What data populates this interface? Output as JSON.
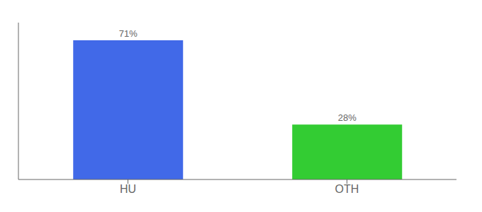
{
  "chart_data": {
    "type": "bar",
    "categories": [
      "HU",
      "OTH"
    ],
    "values": [
      71,
      28
    ],
    "value_labels": [
      "71%",
      "28%"
    ],
    "colors": [
      "#4169e8",
      "#33cc33"
    ],
    "ylim": [
      0,
      80
    ],
    "data_labels": true,
    "tick_labels": "x"
  }
}
